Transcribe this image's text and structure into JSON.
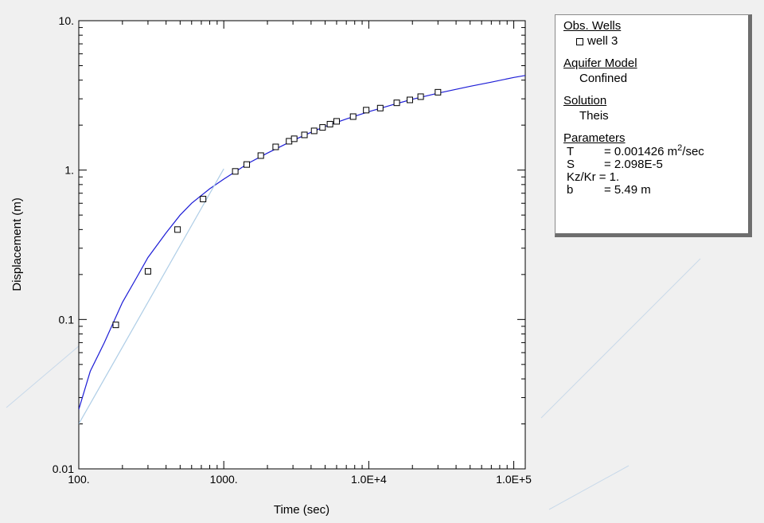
{
  "chart_data": {
    "type": "scatter",
    "xlabel": "Time (sec)",
    "ylabel": "Displacement (m)",
    "xscale": "log",
    "yscale": "log",
    "xlim": [
      100,
      120000
    ],
    "ylim": [
      0.01,
      10
    ],
    "x_tick_labels": [
      {
        "value": 100,
        "label": "100."
      },
      {
        "value": 1000,
        "label": "1000."
      },
      {
        "value": 10000,
        "label": "1.0E+4"
      },
      {
        "value": 100000,
        "label": "1.0E+5"
      }
    ],
    "y_tick_labels": [
      {
        "value": 10,
        "label": "10."
      },
      {
        "value": 1,
        "label": "1."
      },
      {
        "value": 0.1,
        "label": "0.1"
      },
      {
        "value": 0.01,
        "label": "0.01"
      }
    ],
    "grid": false,
    "series": [
      {
        "name": "well 3",
        "kind": "points",
        "marker": "open-square",
        "color": "#000000",
        "x": [
          180,
          300,
          480,
          720,
          1200,
          1440,
          1800,
          2280,
          2820,
          3060,
          3600,
          4200,
          4800,
          5400,
          6000,
          7800,
          9600,
          12000,
          15600,
          19200,
          22800,
          30000
        ],
        "y": [
          0.092,
          0.21,
          0.4,
          0.64,
          0.98,
          1.09,
          1.25,
          1.43,
          1.56,
          1.62,
          1.72,
          1.83,
          1.93,
          2.03,
          2.12,
          2.28,
          2.52,
          2.6,
          2.82,
          2.95,
          3.1,
          3.32
        ]
      },
      {
        "kind": "line",
        "color": "#1c1cd6",
        "x": [
          100,
          120,
          150,
          200,
          250,
          300,
          400,
          500,
          600,
          800,
          1000,
          1500,
          2000,
          3000,
          4000,
          5000,
          7000,
          10000,
          15000,
          20000,
          30000,
          50000,
          70000,
          100000,
          120000
        ],
        "y": [
          0.025,
          0.045,
          0.07,
          0.13,
          0.19,
          0.26,
          0.38,
          0.5,
          0.6,
          0.75,
          0.87,
          1.12,
          1.3,
          1.58,
          1.79,
          1.96,
          2.2,
          2.46,
          2.76,
          2.98,
          3.27,
          3.64,
          3.88,
          4.17,
          4.3
        ]
      },
      {
        "kind": "line",
        "color": "#aecde6",
        "x": [
          100,
          1000
        ],
        "y": [
          0.02,
          1.02
        ]
      }
    ]
  },
  "legend": {
    "obs_wells_header": "Obs. Wells",
    "well_name": "well 3",
    "aquifer_header": "Aquifer Model",
    "aquifer_value": "Confined",
    "solution_header": "Solution",
    "solution_value": "Theis",
    "parameters_header": "Parameters",
    "params": {
      "T_name": "T",
      "T_value": "= 0.001426 m",
      "T_exp": "2",
      "T_unit": "/sec",
      "S_name": "S",
      "S_value": "= 2.098E-5",
      "kz_name": "Kz/Kr",
      "kz_value": "= 1.",
      "b_name": "b",
      "b_value": "= 5.49 m"
    }
  }
}
